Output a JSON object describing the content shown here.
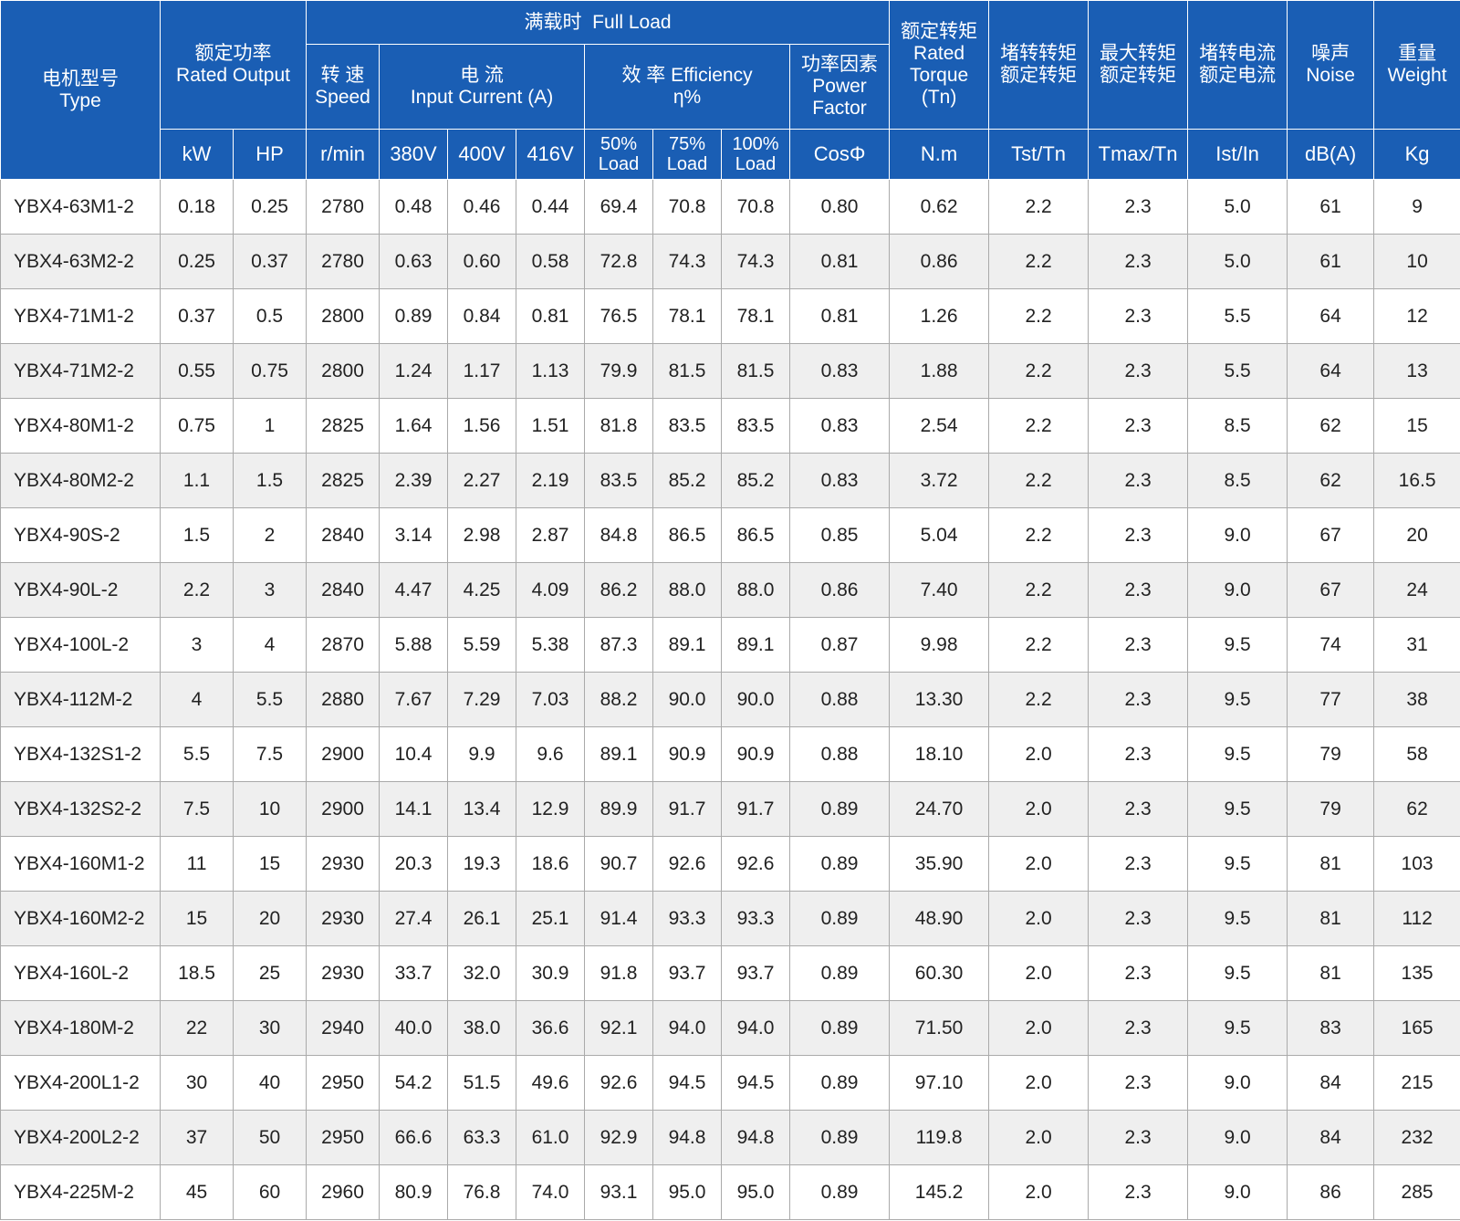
{
  "header": {
    "type_label": [
      "电机型号",
      "Type"
    ],
    "rated_output_label": [
      "额定功率",
      "Rated Output"
    ],
    "full_load_label": "满载时  Full Load",
    "speed_label": [
      "转 速",
      "Speed"
    ],
    "current_label": [
      "电 流",
      "Input Current (A)"
    ],
    "efficiency_label": [
      "效 率 Efficiency",
      "η%"
    ],
    "power_factor_label": [
      "功率因素",
      "Power",
      "Factor"
    ],
    "rated_torque_label": [
      "额定转矩",
      "Rated",
      "Torque",
      "(Tn)"
    ],
    "locked_torque_label": [
      "堵转转矩",
      "额定转矩"
    ],
    "max_torque_label": [
      "最大转矩",
      "额定转矩"
    ],
    "locked_current_label": [
      "堵转电流",
      "额定电流"
    ],
    "noise_label": [
      "噪声",
      "Noise"
    ],
    "weight_label": [
      "重量",
      "Weight"
    ],
    "units": {
      "kw": "kW",
      "hp": "HP",
      "speed": "r/min",
      "v380": "380V",
      "v400": "400V",
      "v416": "416V",
      "load50": [
        "50%",
        "Load"
      ],
      "load75": [
        "75%",
        "Load"
      ],
      "load100": [
        "100%",
        "Load"
      ],
      "cos": "CosΦ",
      "torque": "N.m",
      "tst": "Tst/Tn",
      "tmax": "Tmax/Tn",
      "ist": "Ist/In",
      "db": "dB(A)",
      "kg": "Kg"
    }
  },
  "rows": [
    [
      "YBX4-63M1-2",
      "0.18",
      "0.25",
      "2780",
      "0.48",
      "0.46",
      "0.44",
      "69.4",
      "70.8",
      "70.8",
      "0.80",
      "0.62",
      "2.2",
      "2.3",
      "5.0",
      "61",
      "9"
    ],
    [
      "YBX4-63M2-2",
      "0.25",
      "0.37",
      "2780",
      "0.63",
      "0.60",
      "0.58",
      "72.8",
      "74.3",
      "74.3",
      "0.81",
      "0.86",
      "2.2",
      "2.3",
      "5.0",
      "61",
      "10"
    ],
    [
      "YBX4-71M1-2",
      "0.37",
      "0.5",
      "2800",
      "0.89",
      "0.84",
      "0.81",
      "76.5",
      "78.1",
      "78.1",
      "0.81",
      "1.26",
      "2.2",
      "2.3",
      "5.5",
      "64",
      "12"
    ],
    [
      "YBX4-71M2-2",
      "0.55",
      "0.75",
      "2800",
      "1.24",
      "1.17",
      "1.13",
      "79.9",
      "81.5",
      "81.5",
      "0.83",
      "1.88",
      "2.2",
      "2.3",
      "5.5",
      "64",
      "13"
    ],
    [
      "YBX4-80M1-2",
      "0.75",
      "1",
      "2825",
      "1.64",
      "1.56",
      "1.51",
      "81.8",
      "83.5",
      "83.5",
      "0.83",
      "2.54",
      "2.2",
      "2.3",
      "8.5",
      "62",
      "15"
    ],
    [
      "YBX4-80M2-2",
      "1.1",
      "1.5",
      "2825",
      "2.39",
      "2.27",
      "2.19",
      "83.5",
      "85.2",
      "85.2",
      "0.83",
      "3.72",
      "2.2",
      "2.3",
      "8.5",
      "62",
      "16.5"
    ],
    [
      "YBX4-90S-2",
      "1.5",
      "2",
      "2840",
      "3.14",
      "2.98",
      "2.87",
      "84.8",
      "86.5",
      "86.5",
      "0.85",
      "5.04",
      "2.2",
      "2.3",
      "9.0",
      "67",
      "20"
    ],
    [
      "YBX4-90L-2",
      "2.2",
      "3",
      "2840",
      "4.47",
      "4.25",
      "4.09",
      "86.2",
      "88.0",
      "88.0",
      "0.86",
      "7.40",
      "2.2",
      "2.3",
      "9.0",
      "67",
      "24"
    ],
    [
      "YBX4-100L-2",
      "3",
      "4",
      "2870",
      "5.88",
      "5.59",
      "5.38",
      "87.3",
      "89.1",
      "89.1",
      "0.87",
      "9.98",
      "2.2",
      "2.3",
      "9.5",
      "74",
      "31"
    ],
    [
      "YBX4-112M-2",
      "4",
      "5.5",
      "2880",
      "7.67",
      "7.29",
      "7.03",
      "88.2",
      "90.0",
      "90.0",
      "0.88",
      "13.30",
      "2.2",
      "2.3",
      "9.5",
      "77",
      "38"
    ],
    [
      "YBX4-132S1-2",
      "5.5",
      "7.5",
      "2900",
      "10.4",
      "9.9",
      "9.6",
      "89.1",
      "90.9",
      "90.9",
      "0.88",
      "18.10",
      "2.0",
      "2.3",
      "9.5",
      "79",
      "58"
    ],
    [
      "YBX4-132S2-2",
      "7.5",
      "10",
      "2900",
      "14.1",
      "13.4",
      "12.9",
      "89.9",
      "91.7",
      "91.7",
      "0.89",
      "24.70",
      "2.0",
      "2.3",
      "9.5",
      "79",
      "62"
    ],
    [
      "YBX4-160M1-2",
      "11",
      "15",
      "2930",
      "20.3",
      "19.3",
      "18.6",
      "90.7",
      "92.6",
      "92.6",
      "0.89",
      "35.90",
      "2.0",
      "2.3",
      "9.5",
      "81",
      "103"
    ],
    [
      "YBX4-160M2-2",
      "15",
      "20",
      "2930",
      "27.4",
      "26.1",
      "25.1",
      "91.4",
      "93.3",
      "93.3",
      "0.89",
      "48.90",
      "2.0",
      "2.3",
      "9.5",
      "81",
      "112"
    ],
    [
      "YBX4-160L-2",
      "18.5",
      "25",
      "2930",
      "33.7",
      "32.0",
      "30.9",
      "91.8",
      "93.7",
      "93.7",
      "0.89",
      "60.30",
      "2.0",
      "2.3",
      "9.5",
      "81",
      "135"
    ],
    [
      "YBX4-180M-2",
      "22",
      "30",
      "2940",
      "40.0",
      "38.0",
      "36.6",
      "92.1",
      "94.0",
      "94.0",
      "0.89",
      "71.50",
      "2.0",
      "2.3",
      "9.5",
      "83",
      "165"
    ],
    [
      "YBX4-200L1-2",
      "30",
      "40",
      "2950",
      "54.2",
      "51.5",
      "49.6",
      "92.6",
      "94.5",
      "94.5",
      "0.89",
      "97.10",
      "2.0",
      "2.3",
      "9.0",
      "84",
      "215"
    ],
    [
      "YBX4-200L2-2",
      "37",
      "50",
      "2950",
      "66.6",
      "63.3",
      "61.0",
      "92.9",
      "94.8",
      "94.8",
      "0.89",
      "119.8",
      "2.0",
      "2.3",
      "9.0",
      "84",
      "232"
    ],
    [
      "YBX4-225M-2",
      "45",
      "60",
      "2960",
      "80.9",
      "76.8",
      "74.0",
      "93.1",
      "95.0",
      "95.0",
      "0.89",
      "145.2",
      "2.0",
      "2.3",
      "9.0",
      "86",
      "285"
    ]
  ],
  "colors": {
    "header_bg": "#1a5eb4",
    "header_text": "#ffffff",
    "alt_row_bg": "#efefef",
    "grid": "#aaaaaa"
  }
}
